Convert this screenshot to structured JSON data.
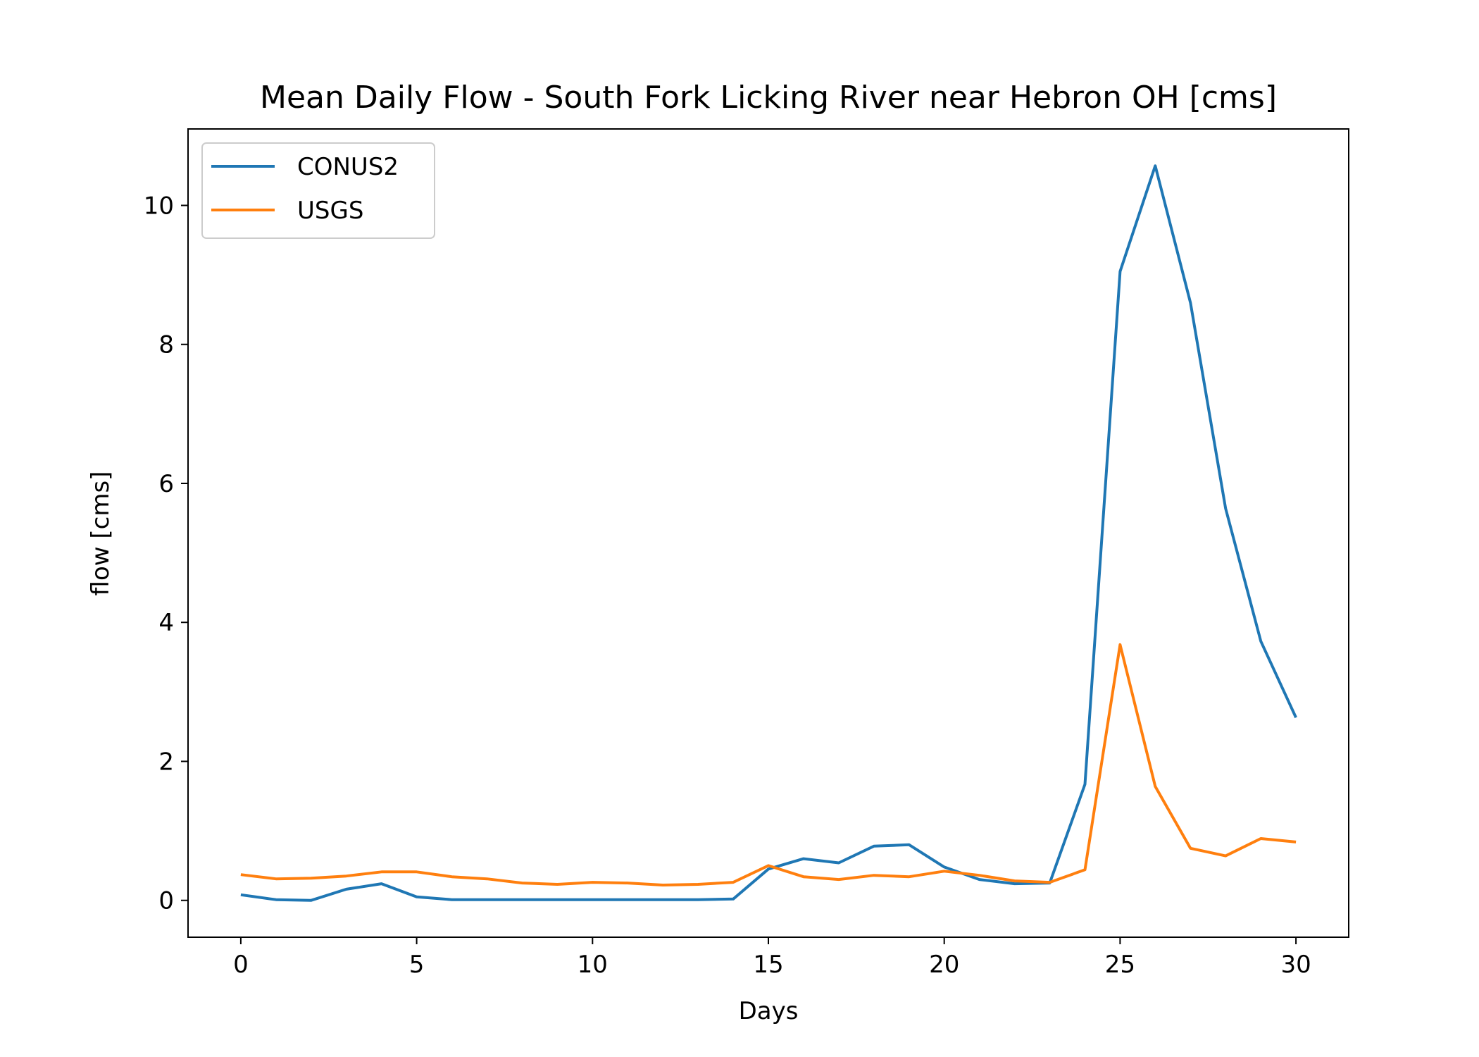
{
  "chart_data": {
    "type": "line",
    "title": "Mean Daily Flow - South Fork Licking River near Hebron OH [cms]",
    "xlabel": "Days",
    "ylabel": "flow [cms]",
    "xlim": [
      -1.5,
      31.5
    ],
    "ylim": [
      -0.53,
      11.1
    ],
    "xticks": [
      0,
      5,
      10,
      15,
      20,
      25,
      30
    ],
    "yticks": [
      0,
      2,
      4,
      6,
      8,
      10
    ],
    "grid": false,
    "legend_position": "top-left",
    "x": [
      0,
      1,
      2,
      3,
      4,
      5,
      6,
      7,
      8,
      9,
      10,
      11,
      12,
      13,
      14,
      15,
      16,
      17,
      18,
      19,
      20,
      21,
      22,
      23,
      24,
      25,
      26,
      27,
      28,
      29,
      30
    ],
    "series": [
      {
        "name": "CONUS2",
        "color": "#1f77b4",
        "values": [
          0.08,
          0.01,
          0.0,
          0.16,
          0.24,
          0.05,
          0.01,
          0.01,
          0.01,
          0.01,
          0.01,
          0.01,
          0.01,
          0.01,
          0.02,
          0.45,
          0.6,
          0.54,
          0.78,
          0.8,
          0.48,
          0.3,
          0.24,
          0.25,
          1.67,
          9.05,
          10.57,
          8.6,
          5.64,
          3.73,
          2.63
        ]
      },
      {
        "name": "USGS",
        "color": "#ff7f0e",
        "values": [
          0.37,
          0.31,
          0.32,
          0.35,
          0.41,
          0.41,
          0.34,
          0.31,
          0.25,
          0.23,
          0.26,
          0.25,
          0.22,
          0.23,
          0.26,
          0.5,
          0.34,
          0.3,
          0.36,
          0.34,
          0.42,
          0.36,
          0.28,
          0.26,
          0.44,
          3.68,
          1.64,
          0.75,
          0.64,
          0.89,
          0.84
        ]
      }
    ]
  }
}
